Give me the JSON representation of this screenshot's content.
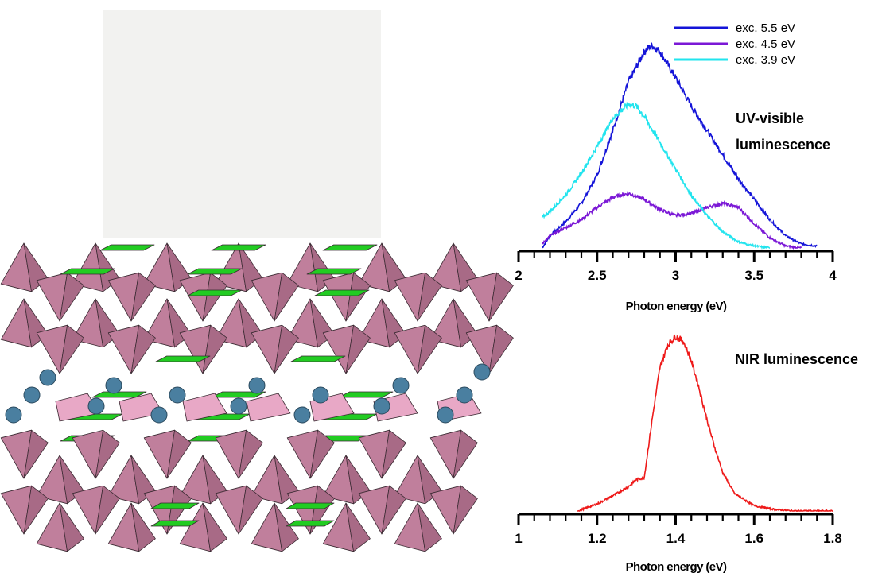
{
  "photo": {
    "background": "#f2f2f0"
  },
  "structure": {
    "polyhedra_color": "#c07f9c",
    "polyhedra_dark": "#a86a86",
    "polyhedra_light": "#e8a8c6",
    "square_color": "#22cc22",
    "ion_color": "#4a7fa0"
  },
  "chart_data": [
    {
      "type": "line",
      "xlabel": "Photon energy (eV)",
      "ylabel": "",
      "xlim": [
        2,
        4
      ],
      "x_ticks": [
        "2",
        "2.5",
        "3",
        "3.5",
        "4"
      ],
      "annotation": "UV-visible luminescence",
      "annotation_lines": [
        "UV-visible",
        "luminescence"
      ],
      "legend": {
        "placement": "top-right"
      },
      "series": [
        {
          "name": "exc. 5.5 eV",
          "color": "#1414d8",
          "x": [
            2.15,
            2.2,
            2.3,
            2.4,
            2.5,
            2.6,
            2.7,
            2.8,
            2.85,
            2.9,
            3.0,
            3.1,
            3.2,
            3.3,
            3.4,
            3.5,
            3.6,
            3.7,
            3.8,
            3.9
          ],
          "y": [
            0.0,
            0.06,
            0.13,
            0.22,
            0.36,
            0.58,
            0.82,
            0.97,
            1.0,
            0.97,
            0.84,
            0.7,
            0.58,
            0.46,
            0.34,
            0.24,
            0.14,
            0.06,
            0.02,
            0.01
          ]
        },
        {
          "name": "exc. 4.5 eV",
          "color": "#7b18d6",
          "x": [
            2.15,
            2.2,
            2.3,
            2.4,
            2.5,
            2.6,
            2.7,
            2.8,
            2.9,
            3.0,
            3.1,
            3.2,
            3.3,
            3.4,
            3.5,
            3.6,
            3.7,
            3.8
          ],
          "y": [
            0.02,
            0.06,
            0.1,
            0.14,
            0.2,
            0.25,
            0.27,
            0.24,
            0.19,
            0.16,
            0.17,
            0.2,
            0.22,
            0.2,
            0.12,
            0.05,
            0.01,
            0.0
          ]
        },
        {
          "name": "exc. 3.9 eV",
          "color": "#22e4ee",
          "x": [
            2.15,
            2.2,
            2.3,
            2.4,
            2.5,
            2.6,
            2.7,
            2.75,
            2.8,
            2.9,
            3.0,
            3.1,
            3.2,
            3.3,
            3.4,
            3.5,
            3.6
          ],
          "y": [
            0.15,
            0.18,
            0.26,
            0.37,
            0.5,
            0.64,
            0.71,
            0.7,
            0.65,
            0.52,
            0.39,
            0.26,
            0.16,
            0.08,
            0.03,
            0.01,
            0.0
          ]
        }
      ]
    },
    {
      "type": "line",
      "xlabel": "Photon energy (eV)",
      "ylabel": "",
      "xlim": [
        1,
        1.8
      ],
      "x_ticks": [
        "1",
        "1.2",
        "1.4",
        "1.6",
        "1.8"
      ],
      "annotation": "NIR luminescence",
      "series": [
        {
          "name": "",
          "color": "#ee1a1a",
          "x": [
            1.15,
            1.2,
            1.25,
            1.28,
            1.3,
            1.32,
            1.34,
            1.36,
            1.38,
            1.4,
            1.42,
            1.44,
            1.46,
            1.48,
            1.5,
            1.52,
            1.55,
            1.6,
            1.65,
            1.7,
            1.8
          ],
          "y": [
            0.0,
            0.04,
            0.1,
            0.14,
            0.18,
            0.19,
            0.52,
            0.82,
            0.95,
            1.0,
            0.97,
            0.86,
            0.7,
            0.52,
            0.36,
            0.22,
            0.1,
            0.03,
            0.01,
            0.0,
            0.0
          ]
        }
      ]
    }
  ]
}
